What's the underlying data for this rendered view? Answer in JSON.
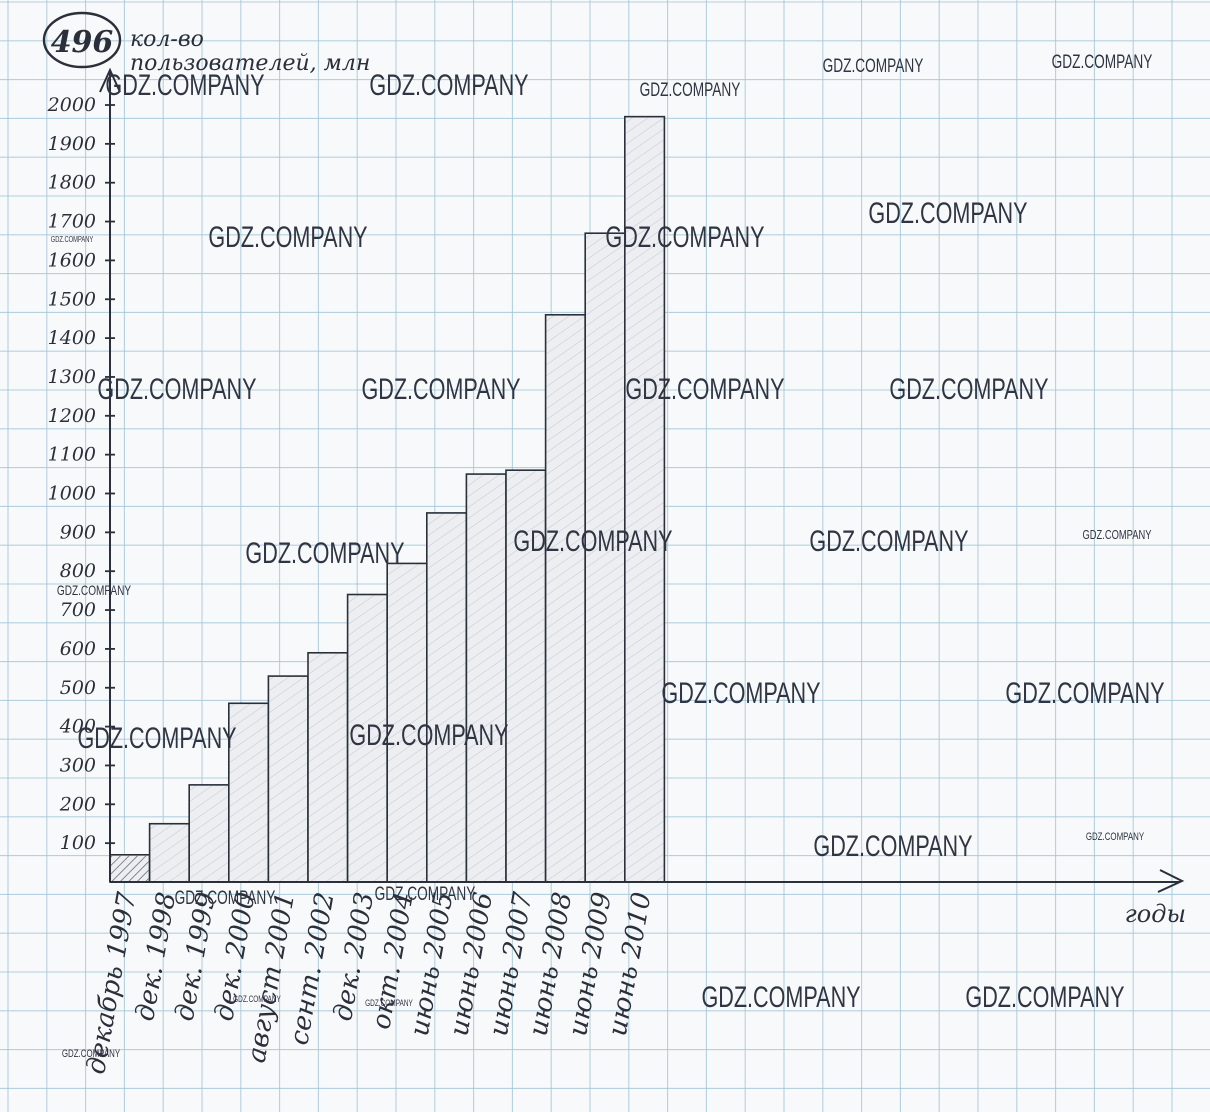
{
  "problem_number": "496",
  "watermark": "GDZ.COMPANY",
  "colors": {
    "paper": "#f7f9fa",
    "grid": "#9fc4d6",
    "ink": "#2a2f3a",
    "bar_fill": "#eceef1",
    "hatch": "#9aa1ac"
  },
  "chart_data": {
    "type": "bar",
    "ylabel": "кол-во пользователей, млн",
    "xlabel": "годы",
    "ylim": [
      0,
      2000
    ],
    "yticks": [
      100,
      200,
      300,
      400,
      500,
      600,
      700,
      800,
      900,
      1000,
      1100,
      1200,
      1300,
      1400,
      1500,
      1600,
      1700,
      1800,
      1900,
      2000
    ],
    "grid": true,
    "categories": [
      "декабрь 1997",
      "дек. 1998",
      "дек. 1999",
      "дек. 2000",
      "август 2001",
      "сент. 2002",
      "дек. 2003",
      "окт. 2004",
      "июнь 2005",
      "июнь 2006",
      "июнь 2007",
      "июнь 2008",
      "июнь 2009",
      "июнь 2010"
    ],
    "values": [
      70,
      150,
      250,
      460,
      530,
      590,
      740,
      820,
      950,
      1050,
      1060,
      1460,
      1670,
      1970
    ]
  }
}
